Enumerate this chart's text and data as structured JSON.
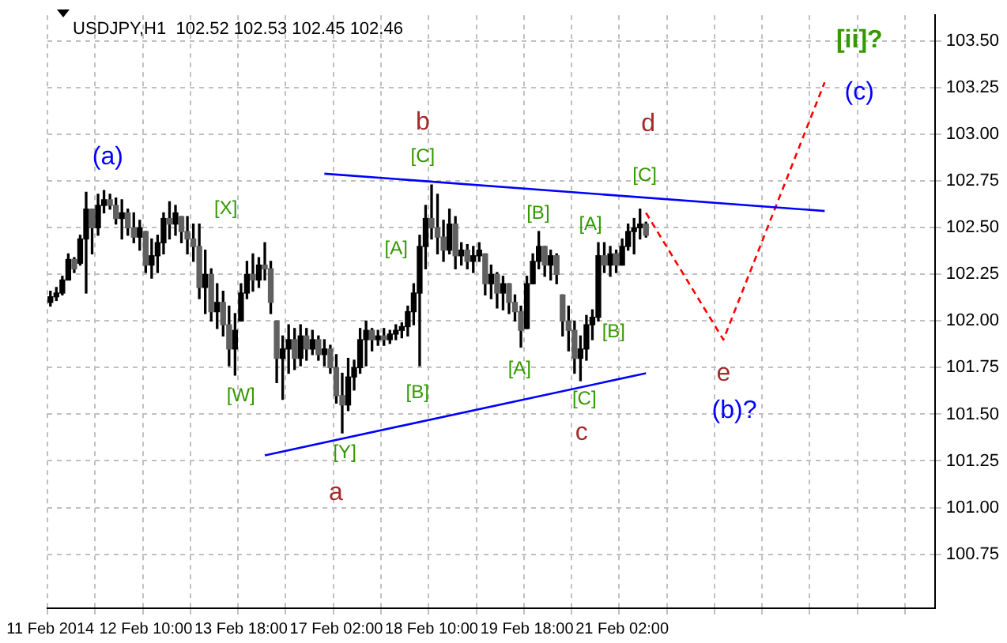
{
  "chart_data": {
    "type": "candlestick",
    "title": "USDJPY,H1  102.52 102.53 102.45 102.46",
    "grid": true,
    "marker": "none",
    "categories": [
      "11 Feb 2014",
      null,
      null,
      null,
      null,
      null,
      null,
      null,
      null,
      null,
      null,
      null,
      null,
      null,
      null,
      null,
      "12 Feb 10:00",
      null,
      null,
      null,
      null,
      null,
      null,
      null,
      null,
      null,
      null,
      null,
      null,
      null,
      null,
      null,
      "13 Feb 18:00",
      null,
      null,
      null,
      null,
      null,
      null,
      null,
      null,
      null,
      null,
      null,
      null,
      null,
      null,
      null,
      "17 Feb 02:00",
      null,
      null,
      null,
      null,
      null,
      null,
      null,
      null,
      null,
      null,
      null,
      null,
      null,
      null,
      null,
      "18 Feb 10:00",
      null,
      null,
      null,
      null,
      null,
      null,
      null,
      null,
      null,
      null,
      null,
      null,
      null,
      null,
      null,
      "19 Feb 18:00",
      null,
      null,
      null,
      null,
      null,
      null,
      null,
      null,
      null,
      null,
      null,
      null,
      null,
      null,
      null,
      "21 Feb 02:00",
      null,
      null,
      null,
      null,
      null,
      null,
      null,
      null,
      null,
      null,
      null,
      null,
      null,
      null,
      null,
      null,
      null,
      null,
      null,
      null,
      null,
      null,
      null,
      null,
      null,
      null,
      null,
      null,
      null,
      null,
      null,
      null,
      null,
      null,
      null,
      null,
      null,
      null,
      null,
      null,
      null,
      null,
      null,
      null,
      null,
      null,
      null,
      null,
      null,
      null,
      null,
      null
    ],
    "ohlc": [
      [
        102.1,
        102.16,
        102.08,
        102.13
      ],
      [
        102.13,
        102.18,
        102.11,
        102.15
      ],
      [
        102.15,
        102.24,
        102.14,
        102.22
      ],
      [
        102.22,
        102.36,
        102.22,
        102.33
      ],
      [
        102.33,
        102.34,
        102.26,
        102.28
      ],
      [
        102.31,
        102.46,
        102.3,
        102.44
      ],
      [
        102.44,
        102.69,
        102.15,
        102.6
      ],
      [
        102.6,
        102.6,
        102.36,
        102.5
      ],
      [
        102.5,
        102.68,
        102.46,
        102.62
      ],
      [
        102.62,
        102.7,
        102.58,
        102.65
      ],
      [
        102.65,
        102.68,
        102.6,
        102.62
      ],
      [
        102.62,
        102.66,
        102.52,
        102.55
      ],
      [
        102.55,
        102.65,
        102.44,
        102.58
      ],
      [
        102.58,
        102.6,
        102.46,
        102.5
      ],
      [
        102.5,
        102.58,
        102.42,
        102.45
      ],
      [
        102.45,
        102.54,
        102.38,
        102.5
      ],
      [
        102.48,
        102.48,
        102.26,
        102.3
      ],
      [
        102.3,
        102.44,
        102.23,
        102.35
      ],
      [
        102.35,
        102.46,
        102.26,
        102.42
      ],
      [
        102.42,
        102.58,
        102.36,
        102.55
      ],
      [
        102.55,
        102.64,
        102.44,
        102.52
      ],
      [
        102.52,
        102.62,
        102.46,
        102.58
      ],
      [
        102.56,
        102.56,
        102.42,
        102.48
      ],
      [
        102.48,
        102.56,
        102.36,
        102.44
      ],
      [
        102.44,
        102.52,
        102.32,
        102.4
      ],
      [
        102.4,
        102.52,
        102.12,
        102.18
      ],
      [
        102.18,
        102.38,
        102.04,
        102.25
      ],
      [
        102.25,
        102.28,
        102.0,
        102.05
      ],
      [
        102.05,
        102.2,
        101.96,
        102.1
      ],
      [
        102.1,
        102.16,
        101.92,
        101.98
      ],
      [
        101.98,
        102.08,
        101.76,
        101.85
      ],
      [
        101.85,
        102.04,
        101.71,
        101.95
      ],
      [
        102.0,
        102.2,
        102.0,
        102.15
      ],
      [
        102.15,
        102.32,
        102.12,
        102.25
      ],
      [
        102.25,
        102.36,
        102.16,
        102.22
      ],
      [
        102.22,
        102.34,
        102.18,
        102.3
      ],
      [
        102.3,
        102.42,
        102.22,
        102.28
      ],
      [
        102.28,
        102.32,
        102.04,
        102.1
      ],
      [
        102.0,
        102.0,
        101.67,
        101.8
      ],
      [
        101.8,
        101.92,
        101.58,
        101.85
      ],
      [
        101.85,
        101.98,
        101.72,
        101.9
      ],
      [
        101.9,
        101.96,
        101.74,
        101.8
      ],
      [
        101.8,
        101.98,
        101.76,
        101.92
      ],
      [
        101.92,
        101.96,
        101.79,
        101.85
      ],
      [
        101.85,
        101.95,
        101.82,
        101.9
      ],
      [
        101.9,
        101.92,
        101.79,
        101.82
      ],
      [
        101.82,
        101.9,
        101.76,
        101.85
      ],
      [
        101.85,
        101.87,
        101.72,
        101.75
      ],
      [
        101.75,
        101.82,
        101.56,
        101.6
      ],
      [
        101.6,
        101.72,
        101.4,
        101.55
      ],
      [
        101.55,
        101.8,
        101.52,
        101.7
      ],
      [
        101.7,
        101.79,
        101.63,
        101.75
      ],
      [
        101.75,
        101.96,
        101.72,
        101.9
      ],
      [
        101.9,
        102.0,
        101.76,
        101.95
      ],
      [
        101.95,
        101.96,
        101.84,
        101.9
      ],
      [
        101.9,
        101.95,
        101.87,
        101.92
      ],
      [
        101.92,
        101.96,
        101.87,
        101.9
      ],
      [
        101.9,
        101.95,
        101.88,
        101.93
      ],
      [
        101.93,
        101.98,
        101.9,
        101.95
      ],
      [
        101.95,
        101.99,
        101.91,
        101.97
      ],
      [
        101.97,
        102.08,
        101.92,
        102.05
      ],
      [
        102.05,
        102.2,
        101.98,
        102.15
      ],
      [
        102.15,
        102.46,
        101.76,
        102.4
      ],
      [
        102.4,
        102.62,
        102.28,
        102.55
      ],
      [
        102.55,
        102.73,
        102.44,
        102.5
      ],
      [
        102.5,
        102.68,
        102.36,
        102.45
      ],
      [
        102.45,
        102.54,
        102.32,
        102.38
      ],
      [
        102.38,
        102.6,
        102.36,
        102.52
      ],
      [
        102.52,
        102.56,
        102.28,
        102.35
      ],
      [
        102.35,
        102.42,
        102.3,
        102.38
      ],
      [
        102.38,
        102.41,
        102.28,
        102.32
      ],
      [
        102.32,
        102.4,
        102.26,
        102.35
      ],
      [
        102.35,
        102.42,
        102.32,
        102.38
      ],
      [
        102.36,
        102.36,
        102.14,
        102.2
      ],
      [
        102.2,
        102.3,
        102.12,
        102.25
      ],
      [
        102.25,
        102.26,
        102.07,
        102.15
      ],
      [
        102.15,
        102.24,
        102.06,
        102.2
      ],
      [
        102.2,
        102.2,
        102.04,
        102.1
      ],
      [
        102.1,
        102.14,
        102.0,
        102.05
      ],
      [
        102.05,
        102.08,
        101.86,
        101.95
      ],
      [
        101.96,
        102.24,
        101.96,
        102.2
      ],
      [
        102.2,
        102.36,
        102.2,
        102.32
      ],
      [
        102.32,
        102.48,
        102.28,
        102.4
      ],
      [
        102.4,
        102.4,
        102.24,
        102.3
      ],
      [
        102.3,
        102.38,
        102.22,
        102.35
      ],
      [
        102.35,
        102.36,
        102.2,
        102.25
      ],
      [
        102.14,
        102.14,
        101.92,
        102.0
      ],
      [
        102.0,
        102.08,
        101.84,
        101.95
      ],
      [
        101.95,
        102.0,
        101.72,
        101.8
      ],
      [
        101.8,
        101.92,
        101.68,
        101.85
      ],
      [
        101.85,
        102.03,
        101.79,
        101.98
      ],
      [
        101.98,
        102.06,
        101.9,
        102.02
      ],
      [
        102.02,
        102.42,
        102.0,
        102.35
      ],
      [
        102.35,
        102.42,
        102.26,
        102.3
      ],
      [
        102.3,
        102.4,
        102.24,
        102.36
      ],
      [
        102.36,
        102.38,
        102.26,
        102.3
      ],
      [
        102.3,
        102.44,
        102.3,
        102.4
      ],
      [
        102.4,
        102.52,
        102.38,
        102.48
      ],
      [
        102.48,
        102.55,
        102.36,
        102.5
      ],
      [
        102.5,
        102.6,
        102.44,
        102.52
      ],
      [
        102.52,
        102.53,
        102.45,
        102.46
      ],
      null,
      null,
      null,
      null,
      null,
      null,
      null,
      null,
      null,
      null,
      null,
      null,
      null,
      null,
      null,
      null,
      null,
      null,
      null,
      null,
      null,
      null,
      null,
      null,
      null,
      null,
      null,
      null,
      null,
      null,
      null,
      null,
      null,
      null,
      null,
      null,
      null,
      null,
      null,
      null,
      null,
      null,
      null,
      null,
      null,
      null,
      null,
      null
    ],
    "series": [
      {
        "type": "line",
        "color": "#0000ff",
        "values": [
          null,
          null,
          null,
          null,
          null,
          null,
          null,
          null,
          null,
          null,
          null,
          null,
          null,
          null,
          null,
          null,
          null,
          null,
          null,
          null,
          null,
          null,
          null,
          null,
          null,
          null,
          null,
          null,
          null,
          null,
          null,
          null,
          null,
          null,
          null,
          null,
          null,
          null,
          null,
          null,
          null,
          null,
          null,
          null,
          null,
          null,
          102.79,
          null,
          null,
          null,
          null,
          null,
          null,
          null,
          null,
          null,
          null,
          null,
          null,
          null,
          null,
          null,
          null,
          null,
          null,
          null,
          null,
          null,
          null,
          null,
          null,
          null,
          null,
          null,
          null,
          null,
          null,
          null,
          null,
          null,
          null,
          null,
          null,
          null,
          null,
          null,
          null,
          null,
          null,
          null,
          null,
          null,
          null,
          null,
          null,
          null,
          null,
          null,
          null,
          null,
          null,
          null,
          null,
          null,
          null,
          null,
          null,
          null,
          null,
          null,
          null,
          null,
          null,
          null,
          null,
          null,
          null,
          null,
          null,
          null,
          null,
          null,
          null,
          null,
          null,
          null,
          null,
          null,
          null,
          null,
          102.59,
          null,
          null,
          null,
          null,
          null,
          null,
          null,
          null,
          null,
          null,
          null,
          null,
          null,
          null,
          null,
          null,
          null,
          null
        ]
      },
      {
        "type": "line",
        "color": "#0000ff",
        "values": [
          null,
          null,
          null,
          null,
          null,
          null,
          null,
          null,
          null,
          null,
          null,
          null,
          null,
          null,
          null,
          null,
          null,
          null,
          null,
          null,
          null,
          null,
          null,
          null,
          null,
          null,
          null,
          null,
          null,
          null,
          null,
          null,
          null,
          null,
          null,
          null,
          101.28,
          null,
          null,
          null,
          null,
          null,
          null,
          null,
          null,
          null,
          null,
          null,
          null,
          null,
          null,
          null,
          null,
          null,
          null,
          null,
          null,
          null,
          null,
          null,
          null,
          null,
          null,
          null,
          null,
          null,
          null,
          null,
          null,
          null,
          null,
          null,
          null,
          null,
          null,
          null,
          null,
          null,
          null,
          null,
          null,
          null,
          null,
          null,
          null,
          null,
          null,
          null,
          null,
          null,
          null,
          null,
          null,
          null,
          null,
          null,
          null,
          null,
          null,
          null,
          101.72,
          null,
          null,
          null,
          null,
          null,
          null,
          null,
          null,
          null,
          null,
          null,
          null,
          null,
          null,
          null,
          null,
          null,
          null,
          null,
          null,
          null,
          null,
          null,
          null,
          null,
          null,
          null,
          null,
          null,
          null,
          null,
          null,
          null,
          null,
          null,
          null,
          null,
          null,
          null,
          null,
          null,
          null,
          null,
          null,
          null,
          null,
          null,
          null
        ]
      },
      {
        "type": "line",
        "color": "#ff0000",
        "line_style": "dashed",
        "values": [
          null,
          null,
          null,
          null,
          null,
          null,
          null,
          null,
          null,
          null,
          null,
          null,
          null,
          null,
          null,
          null,
          null,
          null,
          null,
          null,
          null,
          null,
          null,
          null,
          null,
          null,
          null,
          null,
          null,
          null,
          null,
          null,
          null,
          null,
          null,
          null,
          null,
          null,
          null,
          null,
          null,
          null,
          null,
          null,
          null,
          null,
          null,
          null,
          null,
          null,
          null,
          null,
          null,
          null,
          null,
          null,
          null,
          null,
          null,
          null,
          null,
          null,
          null,
          null,
          null,
          null,
          null,
          null,
          null,
          null,
          null,
          null,
          null,
          null,
          null,
          null,
          null,
          null,
          null,
          null,
          null,
          null,
          null,
          null,
          null,
          null,
          null,
          null,
          null,
          null,
          null,
          null,
          null,
          null,
          null,
          null,
          null,
          null,
          null,
          null,
          102.58,
          null,
          null,
          null,
          null,
          null,
          null,
          null,
          null,
          null,
          null,
          null,
          null,
          101.9,
          null,
          null,
          null,
          null,
          null,
          null,
          null,
          null,
          null,
          null,
          null,
          null,
          null,
          null,
          null,
          null,
          103.28,
          null,
          null,
          null,
          null,
          null,
          null,
          null,
          null,
          null,
          null,
          null,
          null,
          null,
          null,
          null,
          null,
          null,
          null
        ]
      }
    ],
    "ylim": [
      100.46,
      103.64
    ],
    "yticks": [
      {
        "value": 100.75,
        "label": "100.75"
      },
      {
        "value": 101,
        "label": "101.00"
      },
      {
        "value": 101.25,
        "label": "101.25"
      },
      {
        "value": 101.5,
        "label": "101.50"
      },
      {
        "value": 101.75,
        "label": "101.75"
      },
      {
        "value": 102,
        "label": "102.00"
      },
      {
        "value": 102.25,
        "label": "102.25"
      },
      {
        "value": 102.5,
        "label": "102.50"
      },
      {
        "value": 102.75,
        "label": "102.75"
      },
      {
        "value": 103,
        "label": "103.00"
      },
      {
        "value": 103.25,
        "label": "103.25"
      },
      {
        "value": 103.5,
        "label": "103.50"
      }
    ],
    "annotations": [
      "(a)",
      "[X]",
      "[W]",
      "[Y]",
      "a",
      "b",
      "[C]",
      "[A]",
      "[B]",
      "[B]",
      "[A]",
      "[A]",
      "[B]",
      "[C]",
      "c",
      "d",
      "[C]",
      "e",
      "(b)?",
      "[ii]?",
      "(c)"
    ]
  }
}
